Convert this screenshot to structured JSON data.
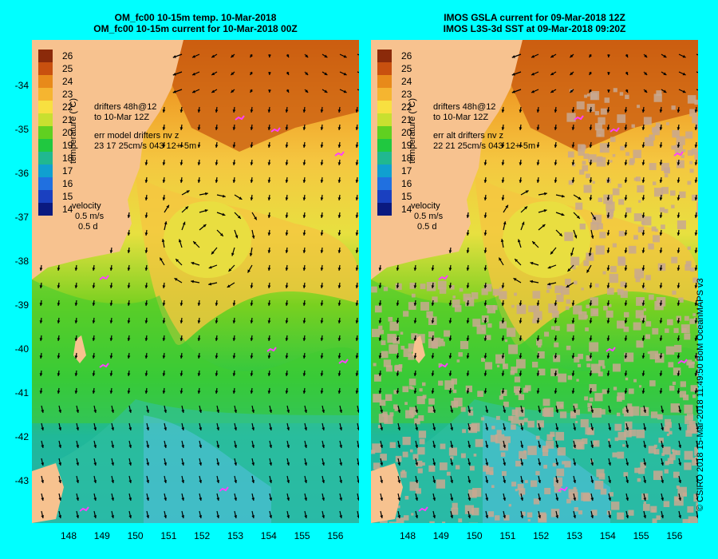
{
  "left": {
    "title_line1": "OM_fc00 10-15m temp. 10-Mar-2018",
    "title_line2": "OM_fc00 10-15m current for 10-Mar-2018 00Z",
    "drifters_line1": "drifters 48h@12",
    "drifters_line2": "to 10-Mar 12Z",
    "err_line1": "err model drifters nv z",
    "err_line2": "23 17 25cm/s 043 12+-5m",
    "velocity_label": "velocity",
    "velocity_scale": "0.5 m/s",
    "velocity_time": "0.5 d"
  },
  "right": {
    "title_line1": "IMOS GSLA current for 09-Mar-2018 12Z",
    "title_line2": "IMOS L3S-3d SST at 09-Mar-2018 09:20Z",
    "drifters_line1": "drifters 48h@12",
    "drifters_line2": "to 10-Mar 12Z",
    "err_line1": "err alt drifters nv z",
    "err_line2": "22 21 25cm/s 043 12+-5m",
    "velocity_label": "velocity",
    "velocity_scale": "0.5 m/s",
    "velocity_time": "0.5 d"
  },
  "colorbar": {
    "title": "temperature (°C)",
    "labels": [
      "26",
      "25",
      "24",
      "23",
      "22",
      "21",
      "20",
      "19",
      "18",
      "17",
      "16",
      "15",
      "14"
    ],
    "colors": [
      "#8b2a0a",
      "#c8500f",
      "#e88a1a",
      "#f5b530",
      "#f8e040",
      "#c8e030",
      "#60d020",
      "#20c840",
      "#20b890",
      "#10a0d0",
      "#2070e0",
      "#1a40c0",
      "#0a1a80"
    ]
  },
  "latitude_ticks": [
    "-34",
    "-35",
    "-36",
    "-37",
    "-38",
    "-39",
    "-40",
    "-41",
    "-42",
    "-43"
  ],
  "longitude_ticks": [
    "148",
    "149",
    "150",
    "151",
    "152",
    "153",
    "154",
    "155",
    "156"
  ],
  "credit": "© CSIRO 2018   15-Mar-2018 11:49:50 BoM OceanMAPS v3",
  "palette": {
    "background": "#00ffff",
    "land": "#f7c28f",
    "no_data": "#c8a890",
    "drifter": "#ff40ff"
  }
}
